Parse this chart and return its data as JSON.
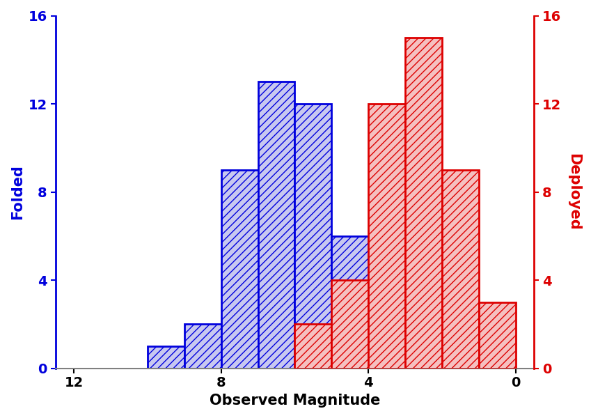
{
  "blue_bins_right": [
    10,
    9,
    8,
    7,
    6,
    5
  ],
  "blue_heights": [
    1,
    2,
    9,
    13,
    12,
    6
  ],
  "red_bins_right": [
    6,
    5,
    4,
    3,
    2,
    1
  ],
  "red_heights": [
    2,
    4,
    12,
    15,
    9,
    3
  ],
  "bin_width": 1,
  "xlim_left": 12.5,
  "xlim_right": -0.5,
  "xticks": [
    12,
    8,
    4,
    0
  ],
  "ylim": [
    0,
    16
  ],
  "yticks": [
    0,
    4,
    8,
    12,
    16
  ],
  "xlabel": "Observed Magnitude",
  "ylabel_left": "Folded",
  "ylabel_right": "Deployed",
  "blue_face": "#c8c8f0",
  "blue_edge": "#0000dd",
  "red_face": "#f5c0c0",
  "red_edge": "#dd0000",
  "blue_hatch": "///",
  "red_hatch": "///",
  "xlabel_fontsize": 15,
  "ylabel_fontsize": 15,
  "tick_fontsize": 14,
  "left_label_color": "#0000dd",
  "right_label_color": "#dd0000",
  "axis_color_left": "#0000dd",
  "axis_color_right": "#dd0000",
  "figsize": [
    8.49,
    6.0
  ],
  "dpi": 100
}
